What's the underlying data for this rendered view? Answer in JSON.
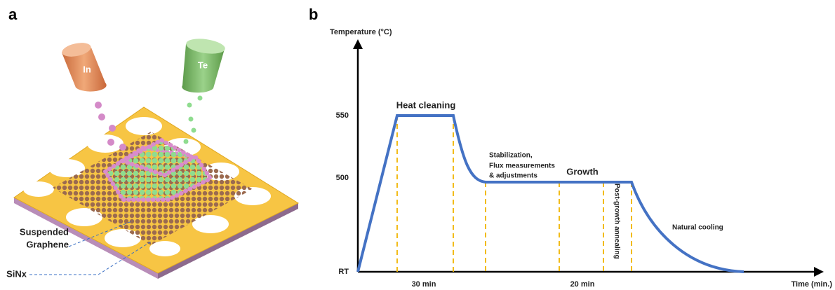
{
  "panels": [
    {
      "label": "a",
      "sources": [
        "In",
        "Te"
      ],
      "annotations": [
        [
          "Suspended",
          "Graphene"
        ],
        [
          "SiNx"
        ]
      ]
    },
    {
      "label": "b",
      "y_axis_title": "Temperature (°C)",
      "y_labels": [
        "550",
        "500",
        "RT"
      ],
      "stages": [
        "Heat cleaning",
        [
          "Stabilization,",
          "Flux measurements",
          "& adjustments"
        ],
        "Growth",
        "Post-growth annealing",
        "Natural cooling"
      ],
      "durations": [
        "30 min",
        "20 min"
      ],
      "x_axis_title": "Time (min.)"
    }
  ]
}
